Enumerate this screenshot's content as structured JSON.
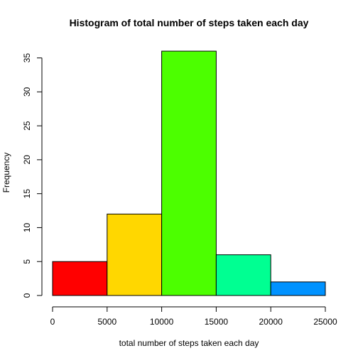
{
  "chart_data": {
    "type": "bar",
    "title": "Histogram of total number of steps taken each day",
    "xlabel": "total number of steps taken each day",
    "ylabel": "Frequency",
    "bins": [
      {
        "from": 0,
        "to": 5000,
        "count": 5,
        "color": "#FF0000"
      },
      {
        "from": 5000,
        "to": 10000,
        "count": 12,
        "color": "#FFD700"
      },
      {
        "from": 10000,
        "to": 15000,
        "count": 36,
        "color": "#4CFF00"
      },
      {
        "from": 15000,
        "to": 20000,
        "count": 6,
        "color": "#00FF92"
      },
      {
        "from": 20000,
        "to": 25000,
        "count": 2,
        "color": "#0092FF"
      }
    ],
    "xticks": [
      "0",
      "5000",
      "10000",
      "15000",
      "20000",
      "25000"
    ],
    "yticks": [
      "0",
      "5",
      "10",
      "15",
      "20",
      "25",
      "30",
      "35"
    ],
    "xlim": [
      0,
      25000
    ],
    "ylim": [
      0,
      36
    ],
    "grid": false,
    "legend": "none"
  }
}
